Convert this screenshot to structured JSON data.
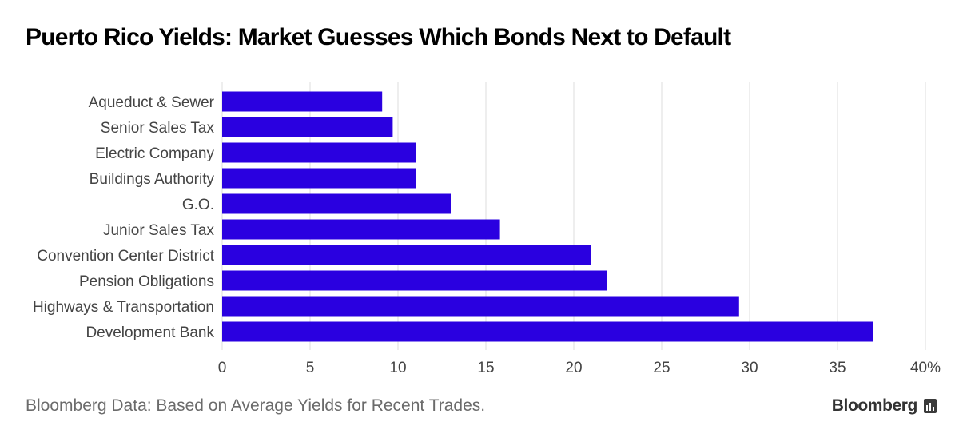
{
  "title": "Puerto Rico Yields: Market Guesses Which Bonds Next to Default",
  "footer": {
    "source": "Bloomberg Data: Based on Average Yields for Recent Trades.",
    "brand": "Bloomberg"
  },
  "colors": {
    "bar": "#2a00e0",
    "grid": "#dcdcdc",
    "label": "#444444"
  },
  "chart_data": {
    "type": "bar",
    "orientation": "horizontal",
    "title": "Puerto Rico Yields: Market Guesses Which Bonds Next to Default",
    "categories": [
      "Aqueduct & Sewer",
      "Senior Sales Tax",
      "Electric Company",
      "Buildings Authority",
      "G.O.",
      "Junior Sales Tax",
      "Convention Center District",
      "Pension Obligations",
      "Highways & Transportation",
      "Development Bank"
    ],
    "values": [
      9.1,
      9.7,
      11.0,
      11.0,
      13.0,
      15.8,
      21.0,
      21.9,
      29.4,
      37.0
    ],
    "xlabel": "",
    "ylabel": "",
    "xlim": [
      0,
      40
    ],
    "xticks": [
      0,
      5,
      10,
      15,
      20,
      25,
      30,
      35,
      40
    ],
    "xtick_labels": [
      "0",
      "5",
      "10",
      "15",
      "20",
      "25",
      "30",
      "35",
      "40%"
    ],
    "grid": true
  }
}
